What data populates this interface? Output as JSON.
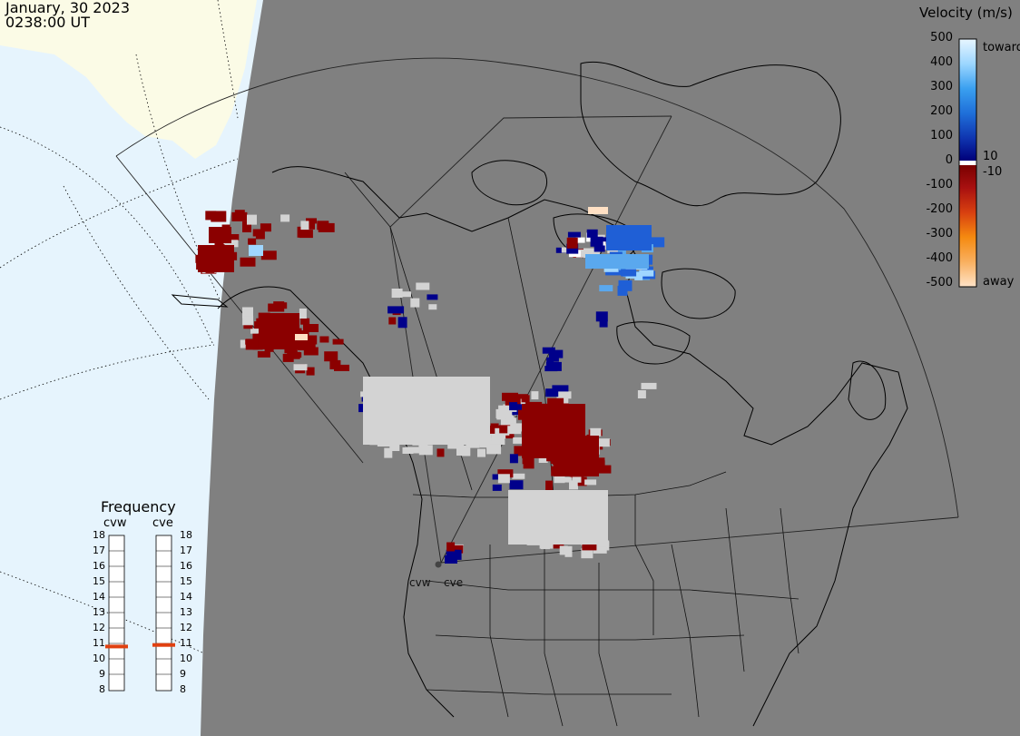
{
  "header": {
    "date": "January, 30 2023",
    "time": "0238:00 UT"
  },
  "colorbar": {
    "title": "Velocity (m/s)",
    "ticks": [
      "500",
      "400",
      "300",
      "200",
      "100",
      "0",
      "-100",
      "-200",
      "-300",
      "-400",
      "-500"
    ],
    "label_toward": "toward",
    "label_away": "away",
    "label_pos10": "10",
    "label_neg10": "-10"
  },
  "frequency": {
    "title": "Frequency",
    "radars": [
      {
        "name": "cvw",
        "selected_mhz": 10.8
      },
      {
        "name": "cve",
        "selected_mhz": 10.9
      }
    ],
    "scale": [
      "18",
      "17",
      "16",
      "15",
      "14",
      "13",
      "12",
      "11",
      "10",
      "9",
      "8"
    ]
  },
  "sites": [
    "cvw",
    "cve"
  ],
  "colors": {
    "background_land": "#808080",
    "ocean": "#e6f4fd",
    "landmass_light": "#fbfbe6",
    "ground_scatter": "#d3d3d3",
    "away_dark": "#8b0000",
    "toward_dark": "#00008b",
    "freq_marker": "#e04010"
  }
}
